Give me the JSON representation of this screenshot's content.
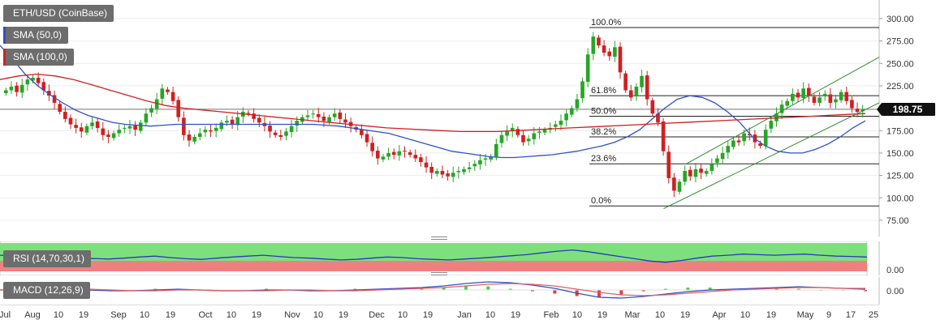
{
  "legend": {
    "symbol": "ETH/USD (CoinBase)",
    "sma50": "SMA (50,0)",
    "sma100": "SMA (100,0)",
    "sma50_color": "#3050c8",
    "sma100_color": "#d02020"
  },
  "rsi": {
    "label": "RSI (14,70,30,1)",
    "axis_label": "0.00"
  },
  "macd": {
    "label": "MACD (12,26,9)",
    "axis_label": "0.00"
  },
  "price_tag": {
    "value": "198.75"
  },
  "colors": {
    "up": "#26a626",
    "down": "#d02020",
    "sma50": "#3050c8",
    "sma100": "#d02020",
    "channel": "#2e8b2e",
    "rsi_fill": "#7de07d",
    "rsi_low": "#f08080",
    "rsi_line": "#2a36c8",
    "macd_line": "#3050c8",
    "signal_line": "#e06060"
  },
  "chart_data": [
    {
      "type": "line",
      "title": "ETH/USD (CoinBase)",
      "x_axis": {
        "labels": [
          "Jul",
          "Aug",
          "10",
          "19",
          "Sep",
          "10",
          "19",
          "Oct",
          "10",
          "19",
          "Nov",
          "10",
          "19",
          "Dec",
          "10",
          "19",
          "Jan",
          "10",
          "19",
          "Feb",
          "10",
          "19",
          "Mar",
          "10",
          "19",
          "Apr",
          "10",
          "19",
          "May",
          "9",
          "17",
          "25"
        ]
      },
      "y_axis": {
        "ticks": [
          300,
          275,
          250,
          225,
          200,
          175,
          150,
          125,
          100,
          75
        ],
        "tick_labels": [
          "300.00",
          "275.00",
          "250.00",
          "225.00",
          "200.00",
          "175.00",
          "150.00",
          "125.00",
          "100.00",
          "75.00"
        ],
        "ylim": [
          65,
          318
        ]
      },
      "current_price": 198.75,
      "fibonacci": {
        "levels": [
          {
            "label": "100.0%",
            "value": 290
          },
          {
            "label": "61.8%",
            "value": 214
          },
          {
            "label": "50.0%",
            "value": 191
          },
          {
            "label": "38.2%",
            "value": 168
          },
          {
            "label": "23.6%",
            "value": 138
          },
          {
            "label": "0.0%",
            "value": 91
          }
        ]
      },
      "channel": {
        "upper": [
          {
            "date": "Mar 20",
            "value": 138
          },
          {
            "date": "May 25",
            "value": 257
          }
        ],
        "lower": [
          {
            "date": "Mar 12",
            "value": 88
          },
          {
            "date": "May 25",
            "value": 206
          }
        ]
      },
      "series": [
        {
          "name": "ETH/USD (CoinBase)",
          "kind": "candlestick",
          "close": [
            220,
            224,
            218,
            226,
            232,
            234,
            228,
            220,
            214,
            206,
            196,
            188,
            182,
            178,
            174,
            180,
            184,
            178,
            170,
            168,
            172,
            176,
            178,
            180,
            176,
            184,
            194,
            200,
            210,
            222,
            218,
            208,
            190,
            170,
            164,
            168,
            172,
            176,
            174,
            178,
            184,
            186,
            182,
            190,
            196,
            194,
            188,
            184,
            180,
            174,
            170,
            168,
            174,
            180,
            186,
            190,
            192,
            194,
            190,
            186,
            190,
            194,
            188,
            184,
            180,
            176,
            170,
            162,
            152,
            144,
            146,
            150,
            148,
            152,
            152,
            148,
            144,
            140,
            134,
            128,
            130,
            126,
            124,
            128,
            130,
            132,
            134,
            138,
            142,
            144,
            146,
            160,
            170,
            174,
            178,
            170,
            162,
            166,
            172,
            174,
            176,
            178,
            182,
            186,
            194,
            200,
            210,
            230,
            260,
            280,
            270,
            262,
            258,
            268,
            240,
            220,
            212,
            224,
            236,
            210,
            194,
            184,
            152,
            122,
            108,
            118,
            130,
            124,
            132,
            128,
            130,
            138,
            144,
            150,
            158,
            164,
            162,
            172,
            170,
            162,
            158,
            176,
            186,
            194,
            204,
            208,
            216,
            212,
            222,
            214,
            206,
            212,
            216,
            206,
            210,
            218,
            208,
            200,
            196,
            198.75
          ]
        },
        {
          "name": "SMA (50,0)",
          "values": [
            270,
            255,
            238,
            225,
            215,
            206,
            198,
            192,
            188,
            184,
            182,
            181,
            180,
            181,
            182,
            182,
            182,
            182,
            182,
            182,
            182,
            182,
            182,
            182,
            182,
            182,
            181,
            180,
            178,
            176,
            174,
            172,
            168,
            164,
            160,
            156,
            152,
            150,
            148,
            146,
            145,
            145,
            146,
            147,
            148,
            150,
            152,
            155,
            158,
            162,
            168,
            176,
            188,
            200,
            210,
            214,
            212,
            206,
            196,
            184,
            168,
            158,
            152,
            150,
            150,
            154,
            160,
            168,
            178,
            186
          ]
        },
        {
          "name": "SMA (100,0)",
          "values": [
            232,
            236,
            238,
            236,
            232,
            226,
            220,
            214,
            208,
            203,
            200,
            198,
            196,
            194,
            192,
            190,
            188,
            186,
            184,
            182,
            180,
            178,
            177,
            176,
            175,
            174,
            174,
            174,
            175,
            176,
            177,
            178,
            179,
            180,
            181,
            182,
            183,
            184,
            185,
            186,
            187,
            188,
            189,
            190,
            191,
            192,
            193,
            194
          ]
        }
      ]
    },
    {
      "type": "line",
      "title": "RSI (14,70,30,1)",
      "y_axis": {
        "ticks": [
          0
        ],
        "tick_labels": [
          "0.00"
        ]
      },
      "bands": {
        "upper": 70,
        "lower": 30
      },
      "series": [
        {
          "name": "RSI",
          "values": [
            58,
            55,
            52,
            50,
            48,
            46,
            47,
            45,
            48,
            52,
            55,
            50,
            46,
            44,
            48,
            52,
            55,
            58,
            54,
            50,
            48,
            45,
            42,
            44,
            48,
            52,
            50,
            46,
            44,
            42,
            45,
            48,
            52,
            56,
            60,
            66,
            72,
            76,
            70,
            62,
            54,
            46,
            38,
            34,
            40,
            48,
            55,
            58,
            62,
            60,
            58,
            60,
            62,
            58,
            55,
            54,
            52
          ]
        }
      ]
    },
    {
      "type": "line",
      "title": "MACD (12,26,9)",
      "y_axis": {
        "ticks": [
          0
        ],
        "tick_labels": [
          "0.00"
        ]
      },
      "series": [
        {
          "name": "MACD",
          "values": [
            0.0,
            0.1,
            0.2,
            0.1,
            0.0,
            -0.1,
            -0.1,
            0.0,
            0.1,
            0.0,
            -0.1,
            -0.1,
            0.0,
            0.0,
            -0.1,
            -0.1,
            0.0,
            0.1,
            0.2,
            0.3,
            0.5,
            0.8,
            1.0,
            0.9,
            0.6,
            0.2,
            -0.4,
            -0.9,
            -1.0,
            -0.8,
            -0.5,
            -0.2,
            0.0,
            0.1,
            0.2,
            0.3,
            0.4,
            0.3,
            0.2,
            0.1
          ]
        },
        {
          "name": "Signal",
          "values": [
            0.0,
            0.0,
            0.1,
            0.1,
            0.1,
            0.0,
            -0.1,
            -0.1,
            0.0,
            0.0,
            -0.1,
            -0.1,
            -0.1,
            0.0,
            0.0,
            -0.1,
            -0.1,
            0.0,
            0.1,
            0.2,
            0.3,
            0.5,
            0.7,
            0.8,
            0.7,
            0.5,
            0.1,
            -0.3,
            -0.6,
            -0.7,
            -0.6,
            -0.4,
            -0.2,
            0.0,
            0.1,
            0.2,
            0.3,
            0.3,
            0.2,
            0.2
          ]
        }
      ]
    }
  ]
}
